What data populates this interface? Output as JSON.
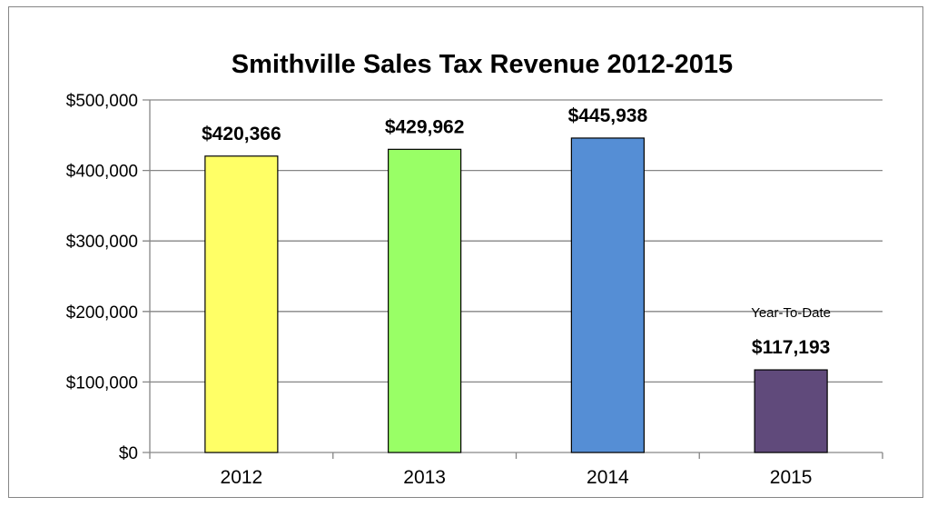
{
  "chart_data": {
    "type": "bar",
    "title": "Smithville Sales Tax Revenue 2012-2015",
    "categories": [
      "2012",
      "2013",
      "2014",
      "2015"
    ],
    "values": [
      420366,
      429962,
      445938,
      117193
    ],
    "data_labels": [
      "$420,366",
      "$429,962",
      "$445,938",
      "$117,193"
    ],
    "bar_colors": [
      "#FFFF66",
      "#99FF66",
      "#558ED5",
      "#604A7B"
    ],
    "ylim": [
      0,
      500000
    ],
    "yticks": [
      0,
      100000,
      200000,
      300000,
      400000,
      500000
    ],
    "ytick_labels": [
      "$0",
      "$100,000",
      "$200,000",
      "$300,000",
      "$400,000",
      "$500,000"
    ],
    "annotation": "Year-To-Date",
    "xlabel": "",
    "ylabel": "",
    "grid": true,
    "legend": "none"
  }
}
